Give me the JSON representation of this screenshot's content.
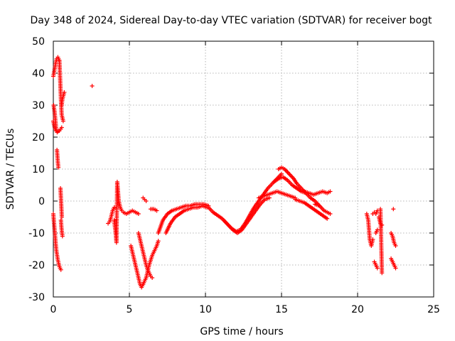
{
  "chart_data": {
    "type": "scatter",
    "title": "Day 348 of 2024, Sidereal Day-to-day VTEC variation (SDTVAR) for receiver bogt",
    "xlabel": "GPS time / hours",
    "ylabel": "SDTVAR / TECUs",
    "xlim": [
      0,
      25
    ],
    "ylim": [
      -30,
      50
    ],
    "xticks": [
      0,
      5,
      10,
      15,
      20,
      25
    ],
    "yticks": [
      -30,
      -20,
      -10,
      0,
      10,
      20,
      30,
      40,
      50
    ],
    "xtick_labels": [
      "0",
      "5",
      "10",
      "15",
      "20",
      "25"
    ],
    "ytick_labels": [
      "-30",
      "-20",
      "-10",
      "0",
      "10",
      "20",
      "30",
      "40",
      "50"
    ],
    "grid": true,
    "marker": "+",
    "color": "#ff0000",
    "segments": [
      {
        "x": [
          0.0,
          0.08,
          0.15,
          0.22,
          0.3,
          0.38
        ],
        "y": [
          39,
          41,
          43,
          44.5,
          45,
          44
        ]
      },
      {
        "x": [
          0.0,
          0.06,
          0.12,
          0.18,
          0.25,
          0.32,
          0.4,
          0.48,
          0.55
        ],
        "y": [
          25,
          23.5,
          22.5,
          22,
          21.5,
          21.8,
          22,
          22.5,
          23
        ]
      },
      {
        "x": [
          0.02,
          0.08,
          0.14,
          0.2
        ],
        "y": [
          30,
          28,
          25,
          22
        ]
      },
      {
        "x": [
          0.24,
          0.27,
          0.3,
          0.33
        ],
        "y": [
          16,
          14,
          12,
          10.5
        ]
      },
      {
        "x": [
          0.4,
          0.45,
          0.5,
          0.55,
          0.6,
          0.65
        ],
        "y": [
          44,
          38,
          32,
          27,
          26,
          25
        ]
      },
      {
        "x": [
          0.55,
          0.6,
          0.66,
          0.72
        ],
        "y": [
          30,
          32,
          33,
          34
        ]
      },
      {
        "x": [
          0.0,
          0.05,
          0.1,
          0.15,
          0.2,
          0.25,
          0.3,
          0.4,
          0.5
        ],
        "y": [
          -4,
          -7,
          -10,
          -13,
          -15.5,
          -17,
          -18.5,
          -20.5,
          -21.5
        ]
      },
      {
        "x": [
          0.47,
          0.5,
          0.53,
          0.56
        ],
        "y": [
          4,
          1,
          -2,
          -5
        ]
      },
      {
        "x": [
          0.5,
          0.53,
          0.56,
          0.6
        ],
        "y": [
          -6,
          -8,
          -9.5,
          -11
        ]
      },
      {
        "x": [
          2.55
        ],
        "y": [
          36
        ]
      },
      {
        "x": [
          3.6,
          3.7,
          3.8,
          3.9,
          4.0
        ],
        "y": [
          -7,
          -6.5,
          -5,
          -3,
          -2
        ]
      },
      {
        "x": [
          4.0,
          4.05,
          4.1,
          4.15,
          4.2,
          4.25,
          4.3,
          4.4,
          4.5,
          4.6,
          4.8,
          5.0,
          5.2,
          5.4,
          5.6
        ],
        "y": [
          -6,
          -8,
          -10,
          -13,
          6,
          3,
          0,
          -2,
          -3,
          -3.5,
          -4,
          -3.5,
          -3,
          -3.5,
          -4
        ]
      },
      {
        "x": [
          5.1,
          5.2,
          5.3,
          5.4,
          5.5,
          5.6,
          5.7,
          5.8,
          5.9
        ],
        "y": [
          -14,
          -16,
          -18,
          -20,
          -22,
          -24,
          -26,
          -27,
          -26
        ]
      },
      {
        "x": [
          5.6,
          5.7,
          5.8,
          5.9,
          6.0,
          6.1,
          6.2,
          6.3,
          6.4,
          6.5
        ],
        "y": [
          -10,
          -12,
          -14,
          -16,
          -18,
          -20,
          -21.5,
          -22.5,
          -23.5,
          -24
        ]
      },
      {
        "x": [
          5.9,
          6.0,
          6.1,
          6.2,
          6.3,
          6.4,
          6.5,
          6.6,
          6.7,
          6.8,
          6.9
        ],
        "y": [
          -26,
          -25,
          -24,
          -22,
          -20,
          -18.5,
          -17,
          -16,
          -15,
          -14,
          -12.5
        ]
      },
      {
        "x": [
          5.9,
          6.0,
          6.1
        ],
        "y": [
          1,
          0.5,
          0
        ]
      },
      {
        "x": [
          6.4,
          6.6,
          6.8
        ],
        "y": [
          -2.5,
          -2.5,
          -3
        ]
      },
      {
        "x": [
          6.9,
          7.2,
          7.5,
          7.8,
          8.1,
          8.4,
          8.7,
          9.0,
          9.3,
          9.6,
          9.9,
          10.2
        ],
        "y": [
          -10,
          -6,
          -4,
          -3,
          -2.5,
          -2,
          -1.5,
          -1.5,
          -1,
          -1,
          -1,
          -1.5
        ]
      },
      {
        "x": [
          7.4,
          7.7,
          8.0,
          8.3,
          8.6,
          8.9,
          9.2,
          9.5,
          9.8,
          10.1
        ],
        "y": [
          -10,
          -7,
          -5,
          -4,
          -3,
          -2.5,
          -2,
          -2,
          -1.5,
          -2
        ]
      },
      {
        "x": [
          10.2,
          10.5,
          10.8,
          11.1,
          11.4,
          11.7,
          12.0,
          12.3,
          12.6,
          12.9,
          13.2,
          13.5,
          13.8,
          14.1,
          14.4,
          14.7,
          15.0
        ],
        "y": [
          -2,
          -3.5,
          -4.5,
          -5.5,
          -7,
          -8.5,
          -9.5,
          -9,
          -7,
          -4.5,
          -2,
          0,
          2,
          4,
          5.5,
          7,
          8.5
        ]
      },
      {
        "x": [
          11.2,
          11.5,
          11.8,
          12.1,
          12.4,
          12.7,
          13.0,
          13.3,
          13.6,
          13.9,
          14.2
        ],
        "y": [
          -6,
          -7.5,
          -9,
          -10,
          -9,
          -7,
          -5,
          -3,
          -1,
          0.5,
          1
        ]
      },
      {
        "x": [
          13.5,
          13.8,
          14.1,
          14.4,
          14.7,
          15.0,
          15.3,
          15.6,
          15.9
        ],
        "y": [
          1,
          1.5,
          2,
          2.5,
          3,
          2.5,
          2,
          1.5,
          1
        ]
      },
      {
        "x": [
          14.8,
          15.0,
          15.2,
          15.4,
          15.6,
          15.8,
          16.0,
          16.3,
          16.6,
          16.9,
          17.2,
          17.5
        ],
        "y": [
          10,
          10.5,
          10,
          9,
          8,
          7,
          5.5,
          4,
          2.5,
          1,
          0,
          -1.5
        ]
      },
      {
        "x": [
          14.5,
          14.8,
          15.1,
          15.4,
          15.7,
          16.0,
          16.3,
          16.6
        ],
        "y": [
          6,
          7,
          7.5,
          6.5,
          5,
          4,
          3,
          2.5
        ]
      },
      {
        "x": [
          15.9,
          16.2,
          16.5,
          16.8,
          17.1,
          17.4,
          17.7,
          18.0
        ],
        "y": [
          0.5,
          0,
          -0.5,
          -1.5,
          -2.5,
          -3.5,
          -4.5,
          -5.5
        ]
      },
      {
        "x": [
          16.5,
          16.8,
          17.1,
          17.4,
          17.7,
          18.0,
          18.2
        ],
        "y": [
          3,
          2.5,
          2,
          2.5,
          3,
          2.5,
          3
        ]
      },
      {
        "x": [
          17.2,
          17.5,
          17.8,
          18.0,
          18.2
        ],
        "y": [
          -1,
          -1.5,
          -3,
          -3.5,
          -4
        ]
      },
      {
        "x": [
          20.6,
          20.7,
          20.8,
          20.9,
          21.0
        ],
        "y": [
          -4,
          -6,
          -12,
          -14,
          -12
        ]
      },
      {
        "x": [
          21.0,
          21.1,
          21.2,
          21.3
        ],
        "y": [
          -4,
          -3.5,
          -4,
          -3
        ]
      },
      {
        "x": [
          21.1,
          21.2,
          21.3
        ],
        "y": [
          -19,
          -20,
          -21
        ]
      },
      {
        "x": [
          21.4,
          21.5,
          21.6
        ],
        "y": [
          -5,
          -7,
          -7.5
        ]
      },
      {
        "x": [
          21.5,
          21.6
        ],
        "y": [
          -2.5,
          -22.5
        ]
      },
      {
        "x": [
          21.2,
          21.3
        ],
        "y": [
          -10,
          -9
        ]
      },
      {
        "x": [
          22.2,
          22.3,
          22.4,
          22.5
        ],
        "y": [
          -10,
          -11,
          -13,
          -14
        ]
      },
      {
        "x": [
          22.2,
          22.3,
          22.4,
          22.5
        ],
        "y": [
          -18,
          -19,
          -20,
          -21
        ]
      },
      {
        "x": [
          22.35
        ],
        "y": [
          -2.5
        ]
      }
    ]
  }
}
